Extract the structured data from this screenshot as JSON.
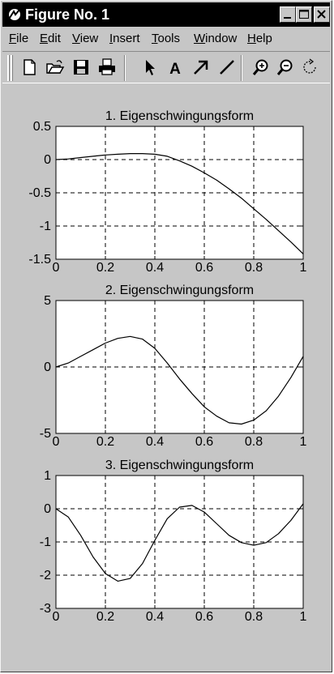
{
  "window": {
    "title": "Figure No. 1",
    "minimize_label": "_",
    "maximize_label": "□",
    "close_label": "×"
  },
  "menu": [
    {
      "label": "File",
      "accel": "F"
    },
    {
      "label": "Edit",
      "accel": "E"
    },
    {
      "label": "View",
      "accel": "V"
    },
    {
      "label": "Insert",
      "accel": "I"
    },
    {
      "label": "Tools",
      "accel": "T"
    },
    {
      "label": "Window",
      "accel": "W"
    },
    {
      "label": "Help",
      "accel": "H"
    }
  ],
  "toolbar": [
    {
      "name": "new-figure-icon",
      "icon": "new-file"
    },
    {
      "name": "open-file-icon",
      "icon": "open-folder"
    },
    {
      "name": "save-icon",
      "icon": "floppy-disk"
    },
    {
      "name": "print-icon",
      "icon": "printer"
    },
    {
      "name": "select-arrow-icon",
      "icon": "pointer-arrow"
    },
    {
      "name": "insert-text-icon",
      "icon": "letter-A"
    },
    {
      "name": "insert-arrow-icon",
      "icon": "diagonal-arrow"
    },
    {
      "name": "insert-line-icon",
      "icon": "diagonal-line"
    },
    {
      "name": "zoom-in-icon",
      "icon": "magnifier-plus"
    },
    {
      "name": "zoom-out-icon",
      "icon": "magnifier-minus"
    },
    {
      "name": "rotate-icon",
      "icon": "rotate-3d"
    }
  ],
  "chart_data": [
    {
      "type": "line",
      "title": "1. Eigenschwingungsform",
      "xlim": [
        0,
        1
      ],
      "ylim": [
        -1.5,
        0.5
      ],
      "xticks": [
        "0",
        "0.2",
        "0.4",
        "0.6",
        "0.8",
        "1"
      ],
      "yticks": [
        "0.5",
        "0",
        "-0.5",
        "-1",
        "-1.5"
      ],
      "grid": true,
      "x": [
        0,
        0.05,
        0.1,
        0.15,
        0.2,
        0.25,
        0.3,
        0.35,
        0.4,
        0.45,
        0.5,
        0.55,
        0.6,
        0.65,
        0.7,
        0.75,
        0.8,
        0.85,
        0.9,
        0.95,
        1.0
      ],
      "y": [
        0,
        0.01,
        0.03,
        0.05,
        0.07,
        0.08,
        0.09,
        0.09,
        0.08,
        0.05,
        -0.02,
        -0.1,
        -0.2,
        -0.31,
        -0.44,
        -0.58,
        -0.74,
        -0.9,
        -1.07,
        -1.24,
        -1.42
      ],
      "color": "#000000"
    },
    {
      "type": "line",
      "title": "2. Eigenschwingungsform",
      "xlim": [
        0,
        1
      ],
      "ylim": [
        -5,
        5
      ],
      "xticks": [
        "0",
        "0.2",
        "0.4",
        "0.6",
        "0.8",
        "1"
      ],
      "yticks": [
        "5",
        "0",
        "-5"
      ],
      "grid": true,
      "x": [
        0,
        0.05,
        0.1,
        0.15,
        0.2,
        0.25,
        0.3,
        0.35,
        0.4,
        0.45,
        0.5,
        0.55,
        0.6,
        0.65,
        0.7,
        0.75,
        0.8,
        0.85,
        0.9,
        0.95,
        1.0
      ],
      "y": [
        0,
        0.3,
        0.8,
        1.3,
        1.8,
        2.15,
        2.3,
        2.1,
        1.4,
        0.3,
        -0.9,
        -2.0,
        -3.0,
        -3.7,
        -4.2,
        -4.3,
        -4.0,
        -3.3,
        -2.2,
        -0.8,
        0.8
      ],
      "color": "#000000"
    },
    {
      "type": "line",
      "title": "3. Eigenschwingungsform",
      "xlim": [
        0,
        1
      ],
      "ylim": [
        -3,
        1
      ],
      "xticks": [
        "0",
        "0.2",
        "0.4",
        "0.6",
        "0.8",
        "1"
      ],
      "yticks": [
        "1",
        "0",
        "-1",
        "-2",
        "-3"
      ],
      "grid": true,
      "x": [
        0,
        0.05,
        0.1,
        0.15,
        0.2,
        0.25,
        0.3,
        0.35,
        0.4,
        0.45,
        0.5,
        0.55,
        0.6,
        0.65,
        0.7,
        0.75,
        0.8,
        0.85,
        0.9,
        0.95,
        1.0
      ],
      "y": [
        0,
        -0.25,
        -0.8,
        -1.45,
        -1.95,
        -2.18,
        -2.1,
        -1.65,
        -0.95,
        -0.3,
        0.05,
        0.1,
        -0.1,
        -0.45,
        -0.8,
        -1.02,
        -1.1,
        -1.02,
        -0.75,
        -0.35,
        0.15
      ],
      "color": "#000000"
    }
  ]
}
